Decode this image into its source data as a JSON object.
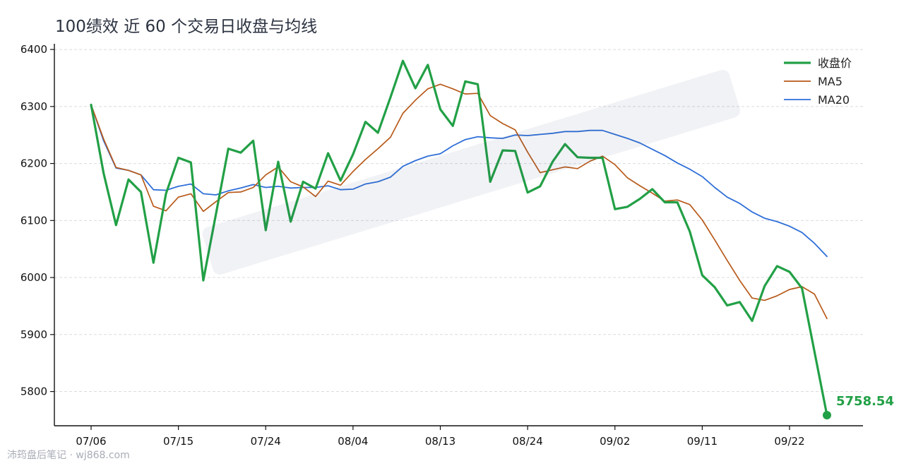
{
  "chart_data": {
    "type": "line",
    "title": "100绩效 近 60 个交易日收盘与均线",
    "xlabel": "",
    "ylabel": "",
    "ylim": [
      5740,
      6410
    ],
    "yticks": [
      5800,
      5900,
      6000,
      6100,
      6200,
      6300,
      6400
    ],
    "x_tick_labels": [
      {
        "index": 0,
        "label": "07/06"
      },
      {
        "index": 7,
        "label": "07/15"
      },
      {
        "index": 14,
        "label": "07/24"
      },
      {
        "index": 21,
        "label": "08/04"
      },
      {
        "index": 28,
        "label": "08/13"
      },
      {
        "index": 35,
        "label": "08/24"
      },
      {
        "index": 42,
        "label": "09/02"
      },
      {
        "index": 49,
        "label": "09/11"
      },
      {
        "index": 56,
        "label": "09/22"
      }
    ],
    "grid": "horizontal dashed",
    "legend_position": "top-right",
    "last_value_label": "5758.54",
    "series": [
      {
        "name": "收盘价",
        "color": "#22a046",
        "values": [
          6303,
          6183,
          6092,
          6172,
          6150,
          6026,
          6147,
          6210,
          6202,
          5995,
          6110,
          6226,
          6219,
          6240,
          6083,
          6203,
          6098,
          6168,
          6156,
          6218,
          6170,
          6216,
          6273,
          6254,
          6316,
          6380,
          6332,
          6373,
          6295,
          6266,
          6344,
          6339,
          6168,
          6223,
          6222,
          6149,
          6160,
          6203,
          6234,
          6211,
          6210,
          6210,
          6120,
          6124,
          6138,
          6155,
          6132,
          6132,
          6081,
          6004,
          5983,
          5951,
          5957,
          5924,
          5985,
          6020,
          6010,
          5981,
          5870,
          5758.54
        ]
      },
      {
        "name": "MA5",
        "color": "#b85a1a",
        "values": [
          6303,
          6243,
          6193,
          6188,
          6180,
          6125,
          6117,
          6141,
          6147,
          6116,
          6133,
          6149,
          6150,
          6158,
          6180,
          6194,
          6168,
          6159,
          6142,
          6169,
          6162,
          6186,
          6207,
          6226,
          6246,
          6288,
          6311,
          6331,
          6339,
          6331,
          6322,
          6323,
          6284,
          6270,
          6259,
          6220,
          6184,
          6189,
          6194,
          6191,
          6204,
          6213,
          6198,
          6175,
          6161,
          6148,
          6134,
          6136,
          6128,
          6101,
          6066,
          6030,
          5995,
          5964,
          5960,
          5968,
          5979,
          5984,
          5971,
          5928
        ]
      },
      {
        "name": "MA20",
        "color": "#2f6fd8",
        "values": [
          6303,
          6240,
          6192,
          6188,
          6180,
          6154,
          6153,
          6160,
          6164,
          6147,
          6145,
          6152,
          6157,
          6163,
          6158,
          6160,
          6157,
          6158,
          6158,
          6161,
          6154,
          6155,
          6164,
          6168,
          6176,
          6195,
          6205,
          6213,
          6217,
          6231,
          6242,
          6247,
          6245,
          6244,
          6250,
          6249,
          6251,
          6253,
          6256,
          6256,
          6258,
          6258,
          6251,
          6244,
          6236,
          6225,
          6214,
          6201,
          6190,
          6177,
          6158,
          6141,
          6130,
          6115,
          6104,
          6098,
          6090,
          6079,
          6060,
          6037
        ]
      }
    ]
  },
  "footer": {
    "text": "沛筠盘后笔记 · wj868.com"
  }
}
